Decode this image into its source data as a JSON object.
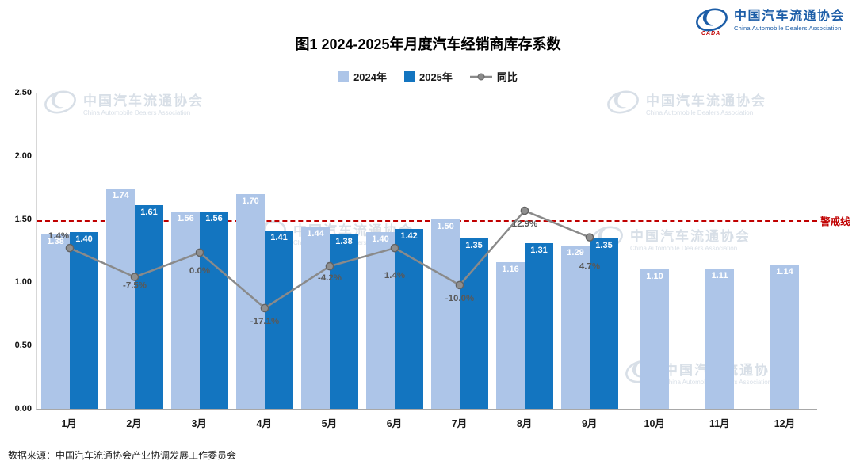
{
  "logo": {
    "name_cn": "中国汽车流通协会",
    "name_en": "China Automobile Dealers Association",
    "sub": "CADA"
  },
  "title": "图1  2024-2025年月度汽车经销商库存系数",
  "legend": [
    {
      "label": "2024年",
      "type": "square",
      "color": "#adc5e8"
    },
    {
      "label": "2025年",
      "type": "square",
      "color": "#1375c0"
    },
    {
      "label": "同比",
      "type": "line",
      "color": "#8a8a8a"
    }
  ],
  "warning_line": {
    "label": "警戒线",
    "value": 1.5,
    "color": "#c00000"
  },
  "watermark": {
    "cn": "中国汽车流通协会",
    "en": "China Automobile Dealers Association"
  },
  "footer": "数据来源：中国汽车流通协会产业协调发展工作委员会",
  "chart_data": {
    "type": "bar",
    "title": "图1  2024-2025年月度汽车经销商库存系数",
    "categories": [
      "1月",
      "2月",
      "3月",
      "4月",
      "5月",
      "6月",
      "7月",
      "8月",
      "9月",
      "10月",
      "11月",
      "12月"
    ],
    "series": [
      {
        "name": "2024年",
        "color": "#adc5e8",
        "values": [
          1.38,
          1.74,
          1.56,
          1.7,
          1.44,
          1.4,
          1.5,
          1.16,
          1.29,
          1.1,
          1.11,
          1.14
        ]
      },
      {
        "name": "2025年",
        "color": "#1375c0",
        "values": [
          1.4,
          1.61,
          1.56,
          1.41,
          1.38,
          1.42,
          1.35,
          1.31,
          1.35,
          null,
          null,
          null
        ]
      }
    ],
    "line_series": {
      "name": "同比",
      "color": "#8a8a8a",
      "values_pct": [
        1.4,
        -7.5,
        0.0,
        -17.1,
        -4.2,
        1.4,
        -10.0,
        12.9,
        4.7
      ],
      "labels": [
        "1.4%",
        "-7.5%",
        "0.0%",
        "-17.1%",
        "-4.2%",
        "1.4%",
        "-10.0%",
        "12.9%",
        "4.7%"
      ]
    },
    "reference_line": {
      "label": "警戒线",
      "value": 1.5
    },
    "ylim": [
      0,
      2.5
    ],
    "yticks": [
      "0.00",
      "0.50",
      "1.00",
      "1.50",
      "2.00",
      "2.50"
    ],
    "grid": false,
    "legend_position": "top"
  }
}
